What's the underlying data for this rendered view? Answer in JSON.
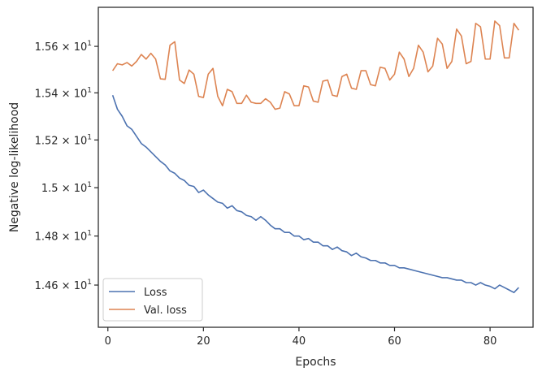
{
  "chart_data": {
    "type": "line",
    "title": "",
    "xlabel": "Epochs",
    "ylabel": "Negative log-likelihood",
    "xlim": [
      -2,
      89
    ],
    "ylim": [
      14.43,
      15.77
    ],
    "yscale": "log",
    "grid": false,
    "legend_position": "lower-left",
    "x_ticks": [
      0,
      20,
      40,
      60,
      80
    ],
    "y_ticks": [
      {
        "value": 14.6,
        "mantissa": "1.46",
        "base": "10",
        "exp": "1"
      },
      {
        "value": 14.8,
        "mantissa": "1.48",
        "base": "10",
        "exp": "1"
      },
      {
        "value": 15.0,
        "mantissa": "1.5",
        "base": "10",
        "exp": "1"
      },
      {
        "value": 15.2,
        "mantissa": "1.52",
        "base": "10",
        "exp": "1"
      },
      {
        "value": 15.4,
        "mantissa": "1.54",
        "base": "10",
        "exp": "1"
      },
      {
        "value": 15.6,
        "mantissa": "1.56",
        "base": "10",
        "exp": "1"
      }
    ],
    "x_start": 1,
    "series": [
      {
        "name": "Loss",
        "color": "#4c72b0",
        "values": [
          15.39,
          15.33,
          15.3,
          15.26,
          15.245,
          15.215,
          15.185,
          15.17,
          15.15,
          15.13,
          15.11,
          15.095,
          15.07,
          15.06,
          15.04,
          15.03,
          15.01,
          15.005,
          14.98,
          14.99,
          14.97,
          14.955,
          14.94,
          14.935,
          14.915,
          14.925,
          14.905,
          14.9,
          14.885,
          14.88,
          14.865,
          14.88,
          14.865,
          14.845,
          14.83,
          14.83,
          14.815,
          14.815,
          14.8,
          14.8,
          14.785,
          14.79,
          14.775,
          14.775,
          14.76,
          14.76,
          14.745,
          14.755,
          14.74,
          14.735,
          14.72,
          14.73,
          14.715,
          14.71,
          14.7,
          14.7,
          14.69,
          14.69,
          14.68,
          14.68,
          14.67,
          14.67,
          14.665,
          14.66,
          14.655,
          14.65,
          14.645,
          14.64,
          14.635,
          14.63,
          14.63,
          14.625,
          14.62,
          14.62,
          14.61,
          14.61,
          14.6,
          14.61,
          14.6,
          14.595,
          14.585,
          14.6,
          14.59,
          14.58,
          14.57,
          14.59
        ]
      },
      {
        "name": "Val. loss",
        "color": "#dd8452",
        "values": [
          15.495,
          15.525,
          15.52,
          15.53,
          15.515,
          15.535,
          15.565,
          15.545,
          15.57,
          15.545,
          15.46,
          15.458,
          15.605,
          15.62,
          15.455,
          15.44,
          15.498,
          15.48,
          15.385,
          15.38,
          15.48,
          15.505,
          15.385,
          15.345,
          15.415,
          15.405,
          15.355,
          15.355,
          15.39,
          15.36,
          15.355,
          15.355,
          15.375,
          15.36,
          15.33,
          15.335,
          15.405,
          15.395,
          15.345,
          15.345,
          15.43,
          15.425,
          15.365,
          15.36,
          15.45,
          15.455,
          15.39,
          15.385,
          15.47,
          15.48,
          15.42,
          15.415,
          15.495,
          15.495,
          15.435,
          15.43,
          15.51,
          15.505,
          15.455,
          15.48,
          15.575,
          15.545,
          15.47,
          15.505,
          15.605,
          15.575,
          15.49,
          15.515,
          15.635,
          15.61,
          15.505,
          15.535,
          15.675,
          15.645,
          15.525,
          15.535,
          15.7,
          15.685,
          15.545,
          15.545,
          15.71,
          15.69,
          15.55,
          15.55,
          15.7,
          15.67
        ]
      }
    ]
  }
}
